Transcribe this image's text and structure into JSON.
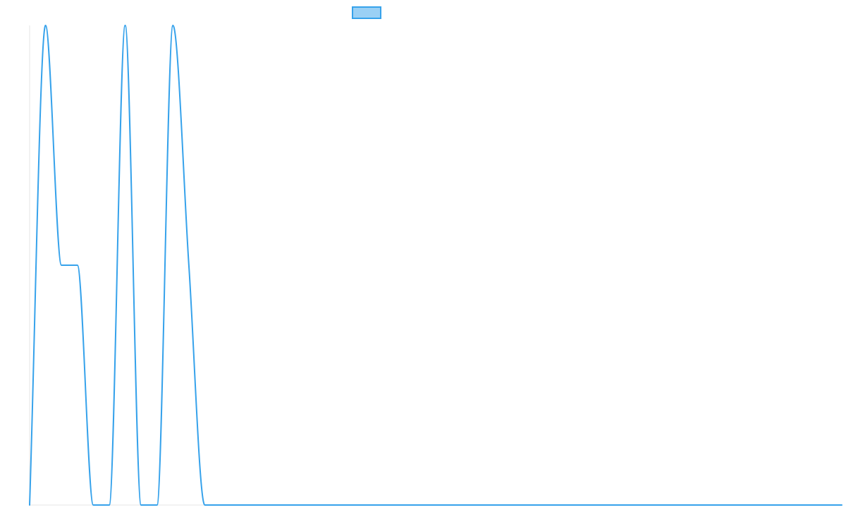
{
  "chart_data": {
    "type": "line",
    "title": "",
    "xlabel": "",
    "ylabel": "",
    "x": [
      0,
      1,
      2,
      3,
      4,
      5,
      6,
      7,
      8,
      9,
      10,
      11,
      12,
      13,
      14,
      15,
      16,
      17,
      18,
      19,
      20,
      21,
      22,
      23,
      24,
      25,
      26,
      27,
      28,
      29,
      30,
      31,
      32,
      33,
      34,
      35,
      36,
      37,
      38,
      39,
      40,
      41,
      42,
      43,
      44,
      45,
      46,
      47,
      48,
      49,
      50,
      51
    ],
    "ylim": [
      0,
      2
    ],
    "series": [
      {
        "name": "",
        "color": "#36a2eb",
        "fill": "#9ad0f5",
        "values": [
          0,
          2,
          1,
          1,
          0,
          0,
          2,
          0,
          0,
          2,
          1,
          0,
          0,
          0,
          0,
          0,
          0,
          0,
          0,
          0,
          0,
          0,
          0,
          0,
          0,
          0,
          0,
          0,
          0,
          0,
          0,
          0,
          0,
          0,
          0,
          0,
          0,
          0,
          0,
          0,
          0,
          0,
          0,
          0,
          0,
          0,
          0,
          0,
          0,
          0,
          0,
          0
        ]
      }
    ],
    "legend": {
      "position": "top"
    },
    "grid": false
  }
}
